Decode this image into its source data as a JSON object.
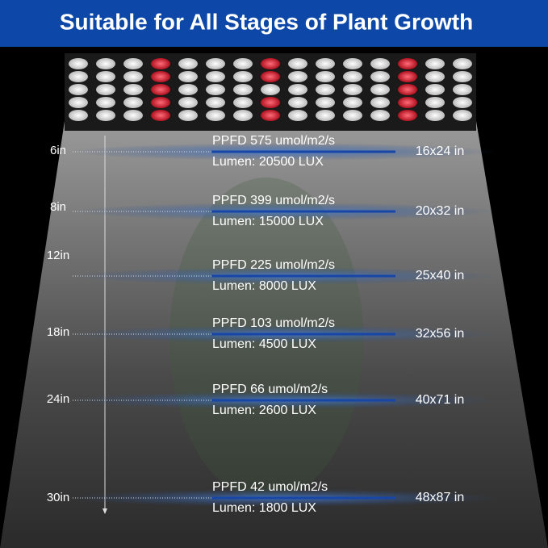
{
  "header": {
    "title": "Suitable for All Stages of Plant Growth"
  },
  "rows": [
    {
      "distance": "6in",
      "ppfd": "PPFD 575  umol/m2/s",
      "lumen": "Lumen: 20500 LUX",
      "area": "16x24 in"
    },
    {
      "distance": "8in",
      "ppfd": "PPFD 399  umol/m2/s",
      "lumen": "Lumen: 15000 LUX",
      "area": "20x32 in"
    },
    {
      "distance": "12in",
      "ppfd": "PPFD 225  umol/m2/s",
      "lumen": "Lumen: 8000 LUX",
      "area": "25x40 in"
    },
    {
      "distance": "18in",
      "ppfd": "PPFD 103 umol/m2/s",
      "lumen": "Lumen: 4500 LUX",
      "area": "32x56 in"
    },
    {
      "distance": "24in",
      "ppfd": "PPFD 66 umol/m2/s",
      "lumen": "Lumen: 2600 LUX",
      "area": "40x71 in"
    },
    {
      "distance": "30in",
      "ppfd": "PPFD 42  umol/m2/s",
      "lumen": "Lumen: 1800 LUX",
      "area": "48x87 in"
    }
  ]
}
